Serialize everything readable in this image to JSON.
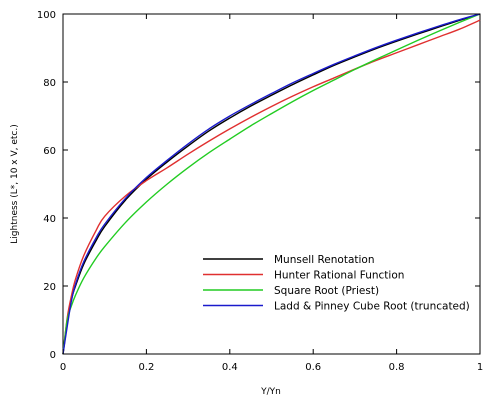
{
  "chart_data": {
    "type": "line",
    "title": "",
    "xlabel": "Y/Yn",
    "ylabel": "Lightness (L*, 10 x V, etc.)",
    "xlim": [
      0,
      1
    ],
    "ylim": [
      0,
      100
    ],
    "xticks": [
      "0",
      "0.2",
      "0.4",
      "0.6",
      "0.8",
      "1"
    ],
    "yticks": [
      "0",
      "20",
      "40",
      "60",
      "80",
      "100"
    ],
    "xtick_values": [
      0,
      0.2,
      0.4,
      0.6,
      0.8,
      1
    ],
    "ytick_values": [
      0,
      20,
      40,
      60,
      80,
      100
    ],
    "grid": false,
    "legend_position": "bottom-right",
    "x": [
      0,
      0.01,
      0.02,
      0.03,
      0.05,
      0.08,
      0.1,
      0.15,
      0.2,
      0.25,
      0.3,
      0.35,
      0.4,
      0.45,
      0.5,
      0.55,
      0.6,
      0.65,
      0.7,
      0.75,
      0.8,
      0.85,
      0.9,
      0.95,
      1
    ],
    "series": [
      {
        "name": "Munsell Renotation",
        "color": "#000000",
        "values": [
          0,
          9.0,
          16.0,
          20.0,
          26.5,
          33.5,
          37.5,
          45.3,
          51.4,
          56.5,
          61.2,
          65.6,
          69.4,
          72.9,
          76.1,
          79.2,
          82.1,
          84.9,
          87.4,
          89.8,
          92.0,
          94.1,
          96.1,
          98.1,
          100
        ]
      },
      {
        "name": "Hunter Rational Function",
        "color": "#e03030",
        "values": [
          0,
          10.5,
          17.0,
          22.0,
          29.0,
          36.5,
          40.5,
          46.5,
          51.0,
          54.8,
          58.8,
          62.6,
          66.2,
          69.6,
          72.8,
          75.8,
          78.6,
          81.2,
          83.8,
          86.3,
          88.6,
          90.9,
          93.2,
          95.5,
          98.2
        ]
      },
      {
        "name": "Square Root (Priest)",
        "color": "#22cc22",
        "values": [
          0,
          10.0,
          14.1,
          17.3,
          22.4,
          28.3,
          31.6,
          38.7,
          44.7,
          50.0,
          54.8,
          59.2,
          63.2,
          67.1,
          70.7,
          74.2,
          77.5,
          80.6,
          83.7,
          86.6,
          89.4,
          92.2,
          94.9,
          97.5,
          100
        ]
      },
      {
        "name": "Ladd & Pinney Cube Root (truncated)",
        "color": "#1a1acc",
        "values": [
          0,
          8.0,
          15.5,
          20.5,
          27.2,
          34.3,
          38.2,
          45.8,
          51.9,
          57.0,
          61.8,
          66.2,
          70.0,
          73.4,
          76.6,
          79.7,
          82.5,
          85.2,
          87.7,
          90.1,
          92.3,
          94.4,
          96.4,
          98.3,
          100
        ]
      }
    ]
  }
}
